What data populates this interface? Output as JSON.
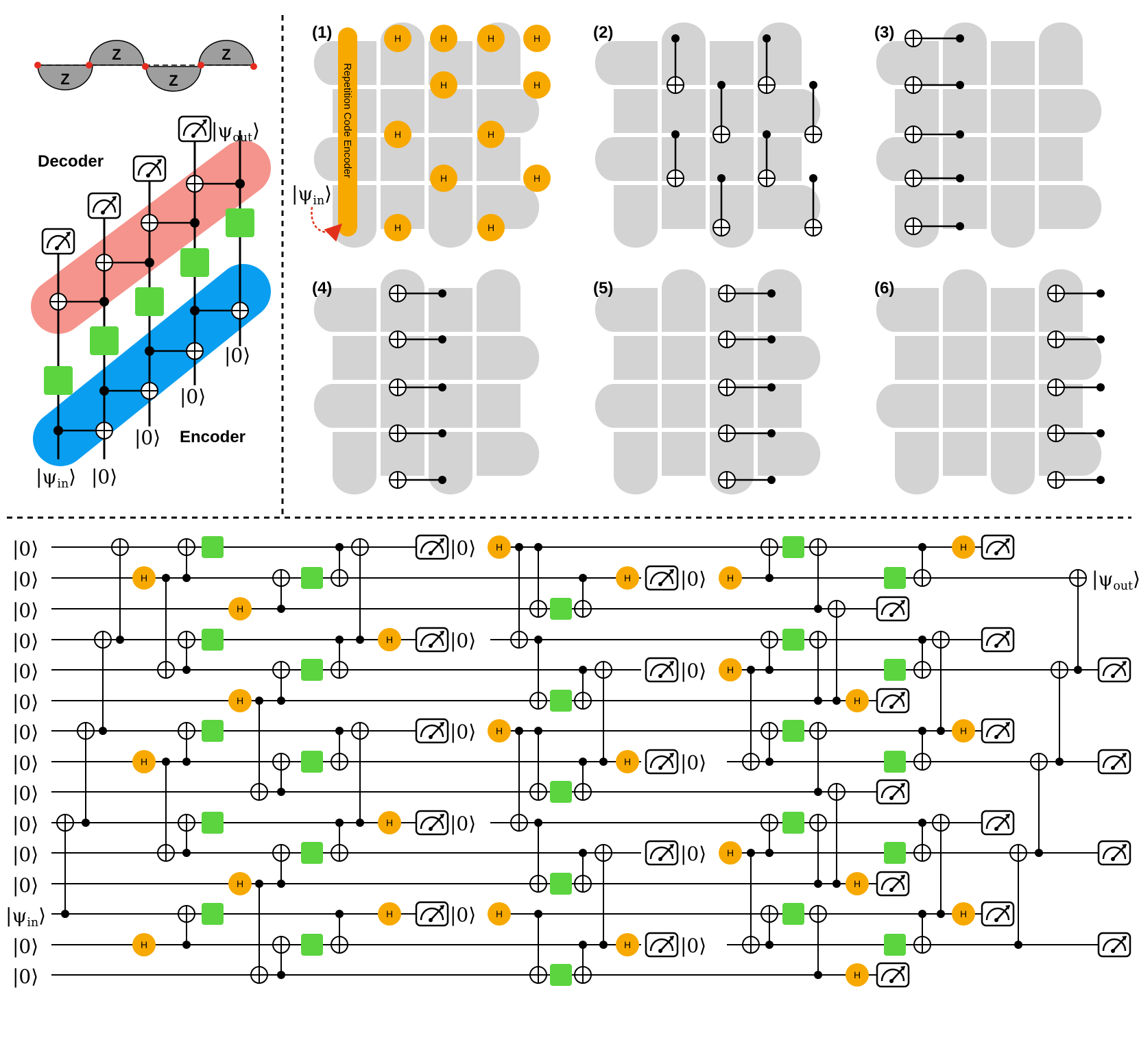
{
  "colors": {
    "hadamard": "#F7A900",
    "gate_green": "#5BD43F",
    "encoder_blue": "#0A9EF0",
    "decoder_red": "#F5948C",
    "patch_gray": "#D3D3D3",
    "z_gray": "#9E9E9E",
    "qubit_red": "#E52B1F",
    "arrow_red": "#E2311A"
  },
  "top_left": {
    "z_label": "Z",
    "decoder_label": "Decoder",
    "encoder_label": "Encoder",
    "psi_in": "|ψ",
    "psi_in_sub": "in",
    "psi_out": "|ψ",
    "psi_out_sub": "out",
    "zero_ket": "|0⟩",
    "ket_close": "⟩"
  },
  "steps": [
    {
      "label": "(1)"
    },
    {
      "label": "(2)"
    },
    {
      "label": "(3)"
    },
    {
      "label": "(4)"
    },
    {
      "label": "(5)"
    },
    {
      "label": "(6)"
    }
  ],
  "step1": {
    "encoder_text": "Repetition Code Encoder",
    "h_label": "H",
    "psi_in": "|ψ",
    "psi_in_sub": "in"
  },
  "bottom": {
    "zero_ket": "|0⟩",
    "psi_in": "|ψ",
    "psi_in_sub": "in",
    "psi_out": "|ψ",
    "psi_out_sub": "out",
    "h_label": "H"
  }
}
